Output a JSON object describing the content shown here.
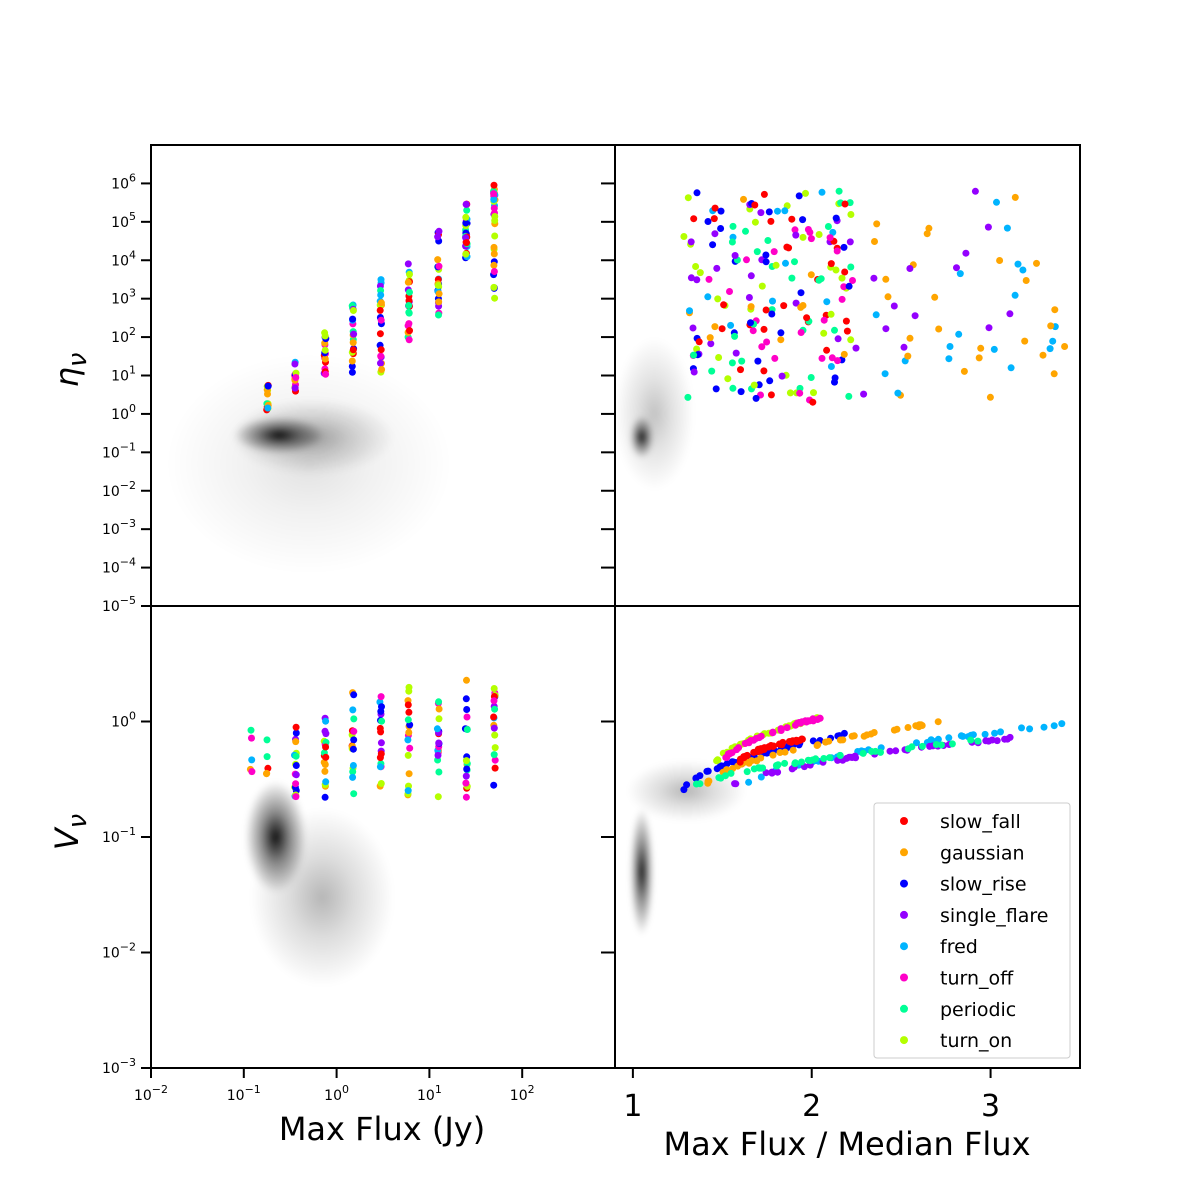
{
  "chart_data": [
    {
      "panel": "top-left",
      "type": "scatter",
      "xscale": "log",
      "yscale": "log",
      "xlim": [
        0.01,
        1000
      ],
      "ylim": [
        1e-05,
        10000000
      ],
      "ylabel": "η_ν",
      "ylabel_main": "η",
      "ylabel_sub": "ν",
      "density": [
        {
          "x": 0.24,
          "y": 0.28,
          "sx": 0.22,
          "sy": 0.22,
          "w": 1.0
        },
        {
          "x": 0.55,
          "y": 0.25,
          "sx": 0.4,
          "sy": 0.45,
          "w": 0.35
        },
        {
          "x": 0.5,
          "y": 0.05,
          "sx": 0.7,
          "sy": 1.3,
          "w": 0.12
        }
      ],
      "x_groups": [
        0.18,
        0.36,
        0.75,
        1.5,
        3.0,
        6.0,
        12.5,
        25,
        50
      ],
      "y_ranges": [
        [
          1.2,
          6
        ],
        [
          3,
          25
        ],
        [
          10,
          180
        ],
        [
          12,
          900
        ],
        [
          12,
          4000
        ],
        [
          70,
          16000
        ],
        [
          350,
          60000
        ],
        [
          9000,
          330000
        ],
        [
          1000,
          1000000
        ]
      ]
    },
    {
      "panel": "top-right",
      "type": "scatter",
      "xscale": "linear",
      "yscale": "log",
      "xlim": [
        0.9,
        3.5
      ],
      "ylim": [
        1e-05,
        10000000
      ],
      "density": [
        {
          "x": 1.05,
          "y": 0.25,
          "sx": 0.03,
          "sy": 0.25,
          "w": 1.0
        },
        {
          "x": 1.12,
          "y": 1.0,
          "sx": 0.1,
          "sy": 0.9,
          "w": 0.25
        }
      ]
    },
    {
      "panel": "bottom-left",
      "type": "scatter",
      "xscale": "log",
      "yscale": "log",
      "xlim": [
        0.01,
        1000
      ],
      "ylim": [
        0.001,
        10
      ],
      "xlabel": "Max Flux (Jy)",
      "ylabel": "V_ν",
      "ylabel_main": "V",
      "ylabel_sub": "ν",
      "density": [
        {
          "x": 0.22,
          "y": 0.1,
          "sx": 0.15,
          "sy": 0.22,
          "w": 1.0
        },
        {
          "x": 0.7,
          "y": 0.03,
          "sx": 0.35,
          "sy": 0.35,
          "w": 0.3
        }
      ]
    },
    {
      "panel": "bottom-right",
      "type": "scatter",
      "xscale": "linear",
      "yscale": "log",
      "xlim": [
        0.9,
        3.5
      ],
      "ylim": [
        0.001,
        10
      ],
      "xlabel": "Max Flux / Median Flux",
      "density": [
        {
          "x": 1.05,
          "y": 0.05,
          "sx": 0.03,
          "sy": 0.25,
          "w": 1.0
        },
        {
          "x": 1.3,
          "y": 0.25,
          "sx": 0.15,
          "sy": 0.12,
          "w": 0.3
        }
      ],
      "curves": [
        {
          "series": "slow_rise",
          "x0": 1.28,
          "x1": 2.2,
          "y0": 0.24,
          "y1": 0.78
        },
        {
          "series": "turn_on",
          "x0": 1.45,
          "x1": 2.05,
          "y0": 0.4,
          "y1": 1.08
        },
        {
          "series": "gaussian",
          "x0": 1.4,
          "x1": 2.8,
          "y0": 0.26,
          "y1": 1.03
        },
        {
          "series": "fred",
          "x0": 1.6,
          "x1": 3.45,
          "y0": 0.25,
          "y1": 0.97
        },
        {
          "series": "single_flare",
          "x0": 1.5,
          "x1": 3.2,
          "y0": 0.24,
          "y1": 0.74
        },
        {
          "series": "turn_off",
          "x0": 1.5,
          "x1": 2.05,
          "y0": 0.42,
          "y1": 1.08
        },
        {
          "series": "periodic",
          "x0": 1.3,
          "x1": 3.0,
          "y0": 0.24,
          "y1": 0.7
        },
        {
          "series": "slow_fall",
          "x0": 1.6,
          "x1": 1.95,
          "y0": 0.45,
          "y1": 0.7
        }
      ]
    }
  ],
  "top_right_rows": [
    6,
    8.5,
    11,
    13.5,
    16,
    18.5,
    21,
    23.5
  ],
  "legend": {
    "position": "lower-right of bottom-right panel",
    "series": [
      {
        "name": "slow_fall",
        "color": "#ff0000"
      },
      {
        "name": "gaussian",
        "color": "#ffa500"
      },
      {
        "name": "slow_rise",
        "color": "#0000ff"
      },
      {
        "name": "single_flare",
        "color": "#9400ff"
      },
      {
        "name": "fred",
        "color": "#00b4ff"
      },
      {
        "name": "turn_off",
        "color": "#ff00c8"
      },
      {
        "name": "periodic",
        "color": "#00ff96"
      },
      {
        "name": "turn_on",
        "color": "#b4ff00"
      }
    ]
  },
  "ticks": {
    "log_top": [
      {
        "base": "10",
        "exp": "6",
        "value": 1000000
      },
      {
        "base": "10",
        "exp": "5",
        "value": 100000
      },
      {
        "base": "10",
        "exp": "4",
        "value": 10000
      },
      {
        "base": "10",
        "exp": "3",
        "value": 1000
      },
      {
        "base": "10",
        "exp": "2",
        "value": 100
      },
      {
        "base": "10",
        "exp": "1",
        "value": 10
      },
      {
        "base": "10",
        "exp": "0",
        "value": 1
      },
      {
        "base": "10",
        "exp": "−1",
        "value": 0.1
      },
      {
        "base": "10",
        "exp": "−2",
        "value": 0.01
      },
      {
        "base": "10",
        "exp": "−3",
        "value": 0.001
      },
      {
        "base": "10",
        "exp": "−4",
        "value": 0.0001
      },
      {
        "base": "10",
        "exp": "−5",
        "value": 1e-05
      }
    ],
    "log_bottom": [
      {
        "base": "10",
        "exp": "0",
        "value": 1
      },
      {
        "base": "10",
        "exp": "−1",
        "value": 0.1
      },
      {
        "base": "10",
        "exp": "−2",
        "value": 0.01
      },
      {
        "base": "10",
        "exp": "−3",
        "value": 0.001
      }
    ],
    "log_x": [
      {
        "base": "10",
        "exp": "−2",
        "value": 0.01
      },
      {
        "base": "10",
        "exp": "−1",
        "value": 0.1
      },
      {
        "base": "10",
        "exp": "0",
        "value": 1
      },
      {
        "base": "10",
        "exp": "1",
        "value": 10
      },
      {
        "base": "10",
        "exp": "2",
        "value": 100
      }
    ],
    "linear_x": [
      {
        "label": "1",
        "value": 1
      },
      {
        "label": "2",
        "value": 2
      },
      {
        "label": "3",
        "value": 3
      }
    ]
  }
}
